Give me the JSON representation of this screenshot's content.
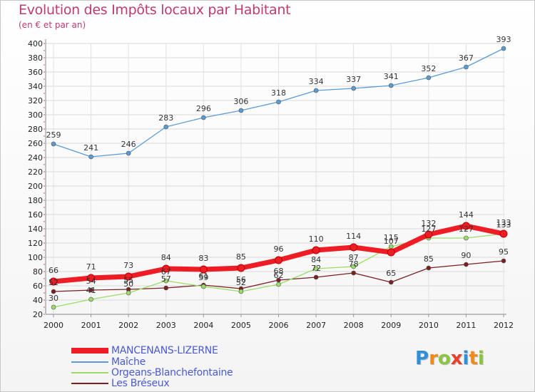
{
  "title": "Evolution des Impôts locaux par Habitant",
  "subtitle": "(en € et par an)",
  "brand": {
    "text": "Proxiti"
  },
  "chart_data": {
    "type": "line",
    "title": "Evolution des Impôts locaux par Habitant",
    "subtitle": "(en € et par an)",
    "xlabel": "",
    "ylabel": "",
    "x": [
      "2000",
      "2001",
      "2002",
      "2003",
      "2004",
      "2005",
      "2006",
      "2007",
      "2008",
      "2009",
      "2010",
      "2011",
      "2012"
    ],
    "ylim": [
      20,
      400
    ],
    "yticks": [
      20,
      40,
      60,
      80,
      100,
      120,
      140,
      160,
      180,
      200,
      220,
      240,
      260,
      280,
      300,
      320,
      340,
      360,
      380,
      400
    ],
    "grid": true,
    "legend_position": "bottom-left",
    "series": [
      {
        "name": "MANCENANS-LIZERNE",
        "color": "#ee1c25",
        "values": [
          66,
          71,
          73,
          84,
          83,
          85,
          96,
          110,
          114,
          107,
          132,
          144,
          133
        ]
      },
      {
        "name": "Maîche",
        "color": "#5b9bd5",
        "values": [
          259,
          241,
          246,
          283,
          296,
          306,
          318,
          334,
          337,
          341,
          352,
          367,
          393
        ]
      },
      {
        "name": "Orgeans-Blanchefontaine",
        "color": "#99dd66",
        "values": [
          30,
          41,
          50,
          67,
          59,
          52,
          62,
          84,
          87,
          115,
          127,
          127,
          133
        ]
      },
      {
        "name": "Les Bréseux",
        "color": "#7a2020",
        "values": [
          52,
          54,
          55,
          57,
          61,
          56,
          68,
          72,
          78,
          65,
          85,
          90,
          95
        ]
      }
    ]
  }
}
